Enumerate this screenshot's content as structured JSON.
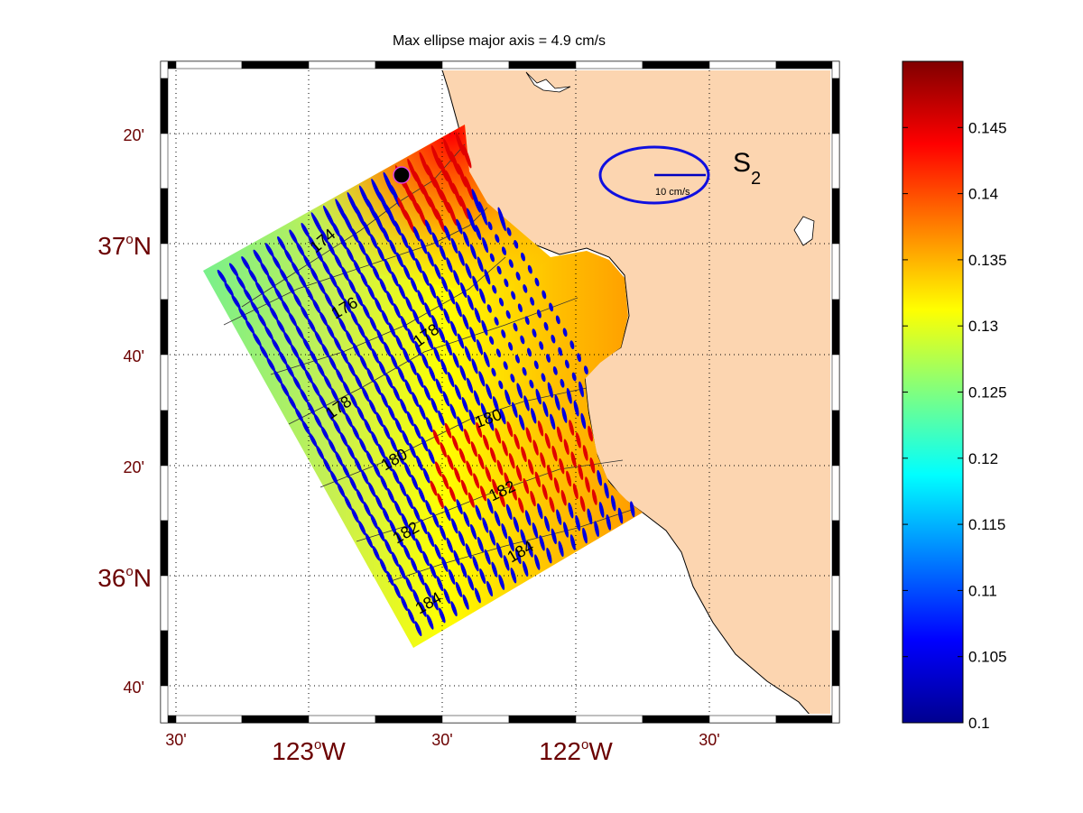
{
  "title": "Max ellipse major axis = 4.9 cm/s",
  "constituent": {
    "main": "S",
    "sub": "2"
  },
  "scale_label": "10 cm/s",
  "x_ticks": [
    {
      "label": "30'",
      "major": false
    },
    {
      "label": "123",
      "suffix": "W",
      "major": true
    },
    {
      "label": "30'",
      "major": false
    },
    {
      "label": "122",
      "suffix": "W",
      "major": true
    },
    {
      "label": "30'",
      "major": false
    }
  ],
  "y_ticks": [
    {
      "label": "20'",
      "major": false
    },
    {
      "label": "37",
      "suffix": "N",
      "major": true
    },
    {
      "label": "40'",
      "major": false
    },
    {
      "label": "20'",
      "major": false
    },
    {
      "label": "36",
      "suffix": "N",
      "major": true
    },
    {
      "label": "40'",
      "major": false
    }
  ],
  "degree_symbol": "o",
  "contour_labels": [
    "174",
    "176",
    "178",
    "178",
    "180",
    "180",
    "182",
    "182",
    "184",
    "184"
  ],
  "colorbar": {
    "min": 0.1,
    "max": 0.15,
    "ticks": [
      "0.1",
      "0.105",
      "0.11",
      "0.115",
      "0.12",
      "0.125",
      "0.13",
      "0.135",
      "0.14",
      "0.145"
    ],
    "colormap": "jet"
  },
  "colors": {
    "land": "#fcd5b0",
    "axis_label": "#6b0000",
    "ellipse_ccw": "#0000e0",
    "ellipse_cw": "#e00000"
  }
}
